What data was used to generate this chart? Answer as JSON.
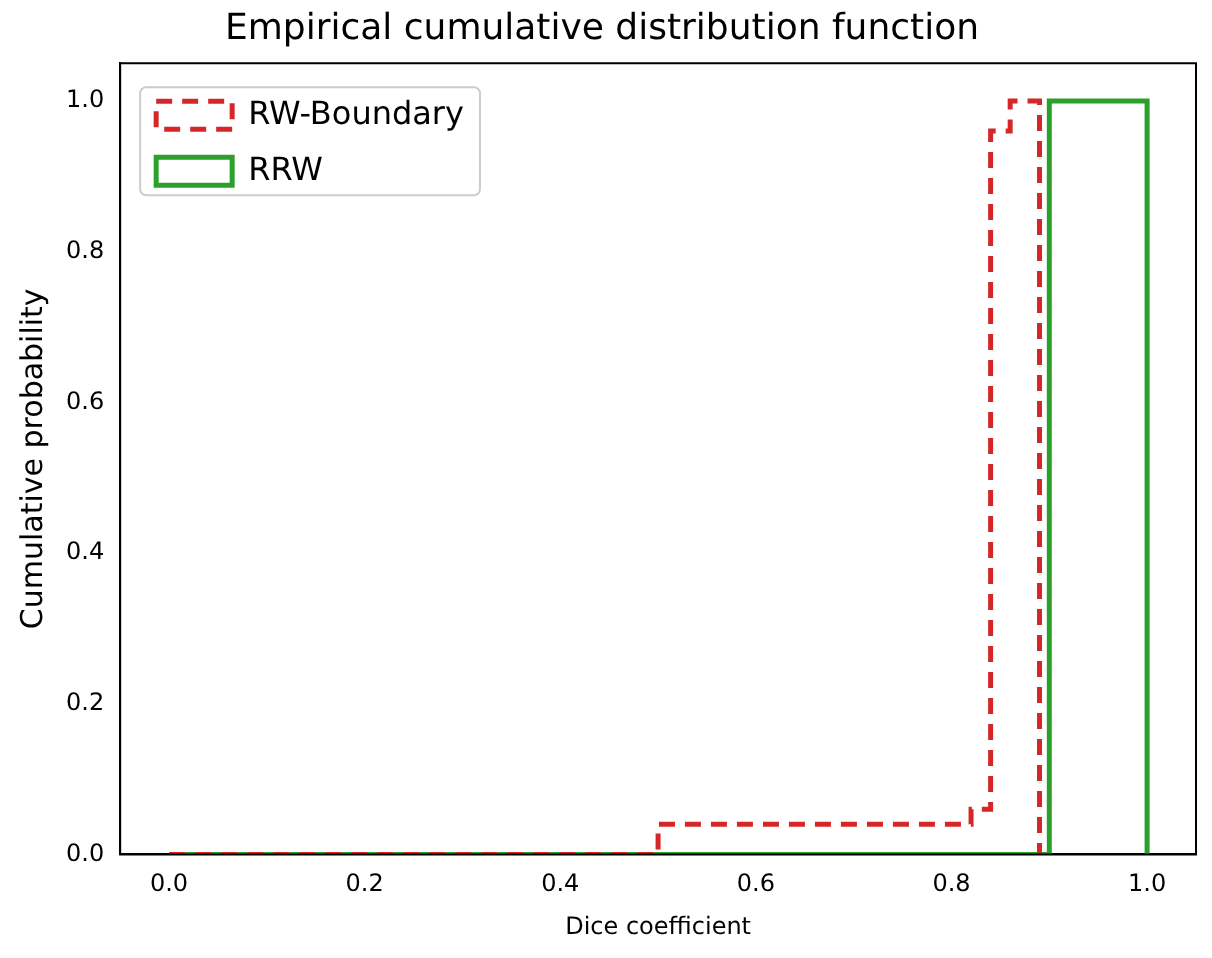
{
  "chart_data": {
    "type": "step",
    "title": "Empirical cumulative distribution function",
    "xlabel": "Dice coefficient",
    "ylabel": "Cumulative probability",
    "series": [
      {
        "name": "RW-Boundary",
        "color": "#d62728",
        "line_style": "dashed",
        "x": [
          0,
          0.5,
          0.82,
          0.84,
          0.86,
          0.89
        ],
        "values": [
          0,
          0.04,
          0.06,
          0.96,
          1,
          0
        ]
      },
      {
        "name": "RRW",
        "color": "#2ca02c",
        "line_style": "solid",
        "x": [
          0,
          0.9,
          1.0
        ],
        "values": [
          0,
          1,
          0
        ]
      }
    ],
    "xlim": [
      -0.05,
      1.05
    ],
    "xticks": [
      {
        "value": 0,
        "label": "0.0"
      },
      {
        "value": 0.2,
        "label": "0.2"
      },
      {
        "value": 0.4,
        "label": "0.4"
      },
      {
        "value": 0.6,
        "label": "0.6"
      },
      {
        "value": 0.8,
        "label": "0.8"
      },
      {
        "value": 1,
        "label": "1.0"
      }
    ],
    "ylim": [
      0,
      1.05
    ],
    "yticks": [
      {
        "value": 0,
        "label": "0.0"
      },
      {
        "value": 0.2,
        "label": "0.2"
      },
      {
        "value": 0.4,
        "label": "0.4"
      },
      {
        "value": 0.6,
        "label": "0.6"
      },
      {
        "value": 0.8,
        "label": "0.8"
      },
      {
        "value": 1,
        "label": "1.0"
      }
    ],
    "legend": "top left"
  }
}
